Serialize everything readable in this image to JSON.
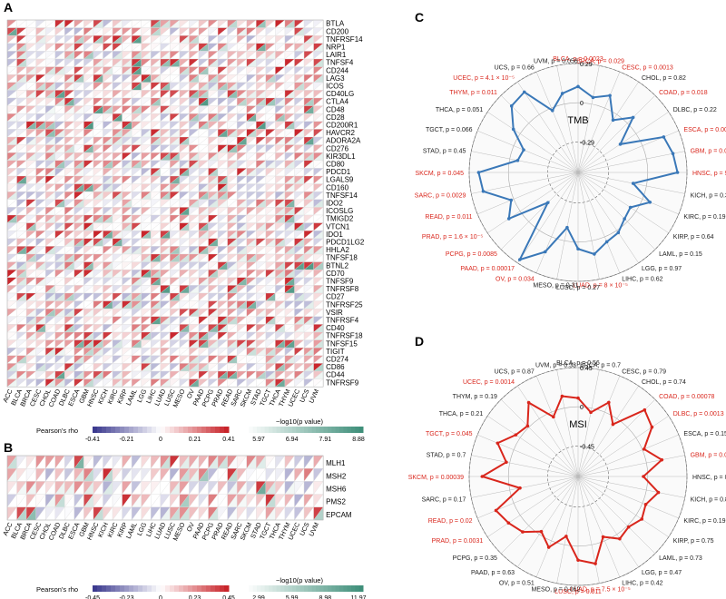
{
  "panels": {
    "A": {
      "label": "A",
      "title": "",
      "rows": [
        "BTLA",
        "CD200",
        "TNFRSF14",
        "NRP1",
        "LAIR1",
        "TNFSF4",
        "CD244",
        "LAG3",
        "ICOS",
        "CD40LG",
        "CTLA4",
        "CD48",
        "CD28",
        "CD200R1",
        "HAVCR2",
        "ADORA2A",
        "CD276",
        "KIR3DL1",
        "CD80",
        "PDCD1",
        "LGALS9",
        "CD160",
        "TNFSF14",
        "IDO2",
        "ICOSLG",
        "TMIGD2",
        "VTCN1",
        "IDO1",
        "PDCD1LG2",
        "HHLA2",
        "TNFSF18",
        "BTNL2",
        "CD70",
        "TNFSF9",
        "TNFRSF8",
        "CD27",
        "TNFRSF25",
        "VSIR",
        "TNFRSF4",
        "CD40",
        "TNFRSF18",
        "TNFSF15",
        "TIGIT",
        "CD274",
        "CD86",
        "CD44",
        "TNFRSF9"
      ],
      "columns": [
        "ACC",
        "BLCA",
        "BRCA",
        "CESC",
        "CHOL",
        "COAD",
        "DLBC",
        "ESCA",
        "GBM",
        "HNSC",
        "KICH",
        "KIRC",
        "KIRP",
        "LAML",
        "LGG",
        "LIHC",
        "LUAD",
        "LUSC",
        "MESO",
        "OV",
        "PAAD",
        "PCPG",
        "PRAD",
        "READ",
        "SARC",
        "SKCM",
        "STAD",
        "TGCT",
        "THCA",
        "THYM",
        "UCEC",
        "UCS",
        "UVM"
      ],
      "legend": {
        "rho_title": "Pearson's rho",
        "rho_ticks": [
          "-0.41",
          "-0.21",
          "0",
          "0.21",
          "0.41"
        ],
        "p_title": "−log10(p value)",
        "p_ticks": [
          "5.97",
          "6.94",
          "7.91",
          "8.88"
        ]
      }
    },
    "B": {
      "label": "B",
      "title": "",
      "rows": [
        "MLH1",
        "MSH2",
        "MSH6",
        "PMS2",
        "EPCAM"
      ],
      "columns": [
        "ACC",
        "BLCA",
        "BRCA",
        "CESC",
        "CHOL",
        "COAD",
        "DLBC",
        "ESCA",
        "GBM",
        "HNSC",
        "KICH",
        "KIRC",
        "KIRP",
        "LAML",
        "LGG",
        "LIHC",
        "LUAD",
        "LUSC",
        "MESO",
        "OV",
        "PAAD",
        "PCPG",
        "PRAD",
        "READ",
        "SARC",
        "SKCM",
        "STAD",
        "TGCT",
        "THCA",
        "THYM",
        "UCEC",
        "UCS",
        "UVM"
      ],
      "legend": {
        "rho_title": "Pearson's rho",
        "rho_ticks": [
          "-0.45",
          "-0.23",
          "0",
          "0.23",
          "0.45"
        ],
        "p_title": "−log10(p value)",
        "p_ticks": [
          "2.99",
          "5.99",
          "8.98",
          "11.97"
        ]
      }
    },
    "C": {
      "label": "C",
      "center_label": "TMB",
      "ring_labels": [
        "0.29",
        "0",
        "-0.29"
      ],
      "series_color": "#3a78b8",
      "points": [
        {
          "name": "BLCA",
          "p": "p = 0.0023",
          "r": 0.12,
          "sig": true
        },
        {
          "name": "BRCA",
          "p": "p = 0.029",
          "r": 0.05,
          "sig": true
        },
        {
          "name": "CESC",
          "p": "p = 0.0013",
          "r": 0.1,
          "sig": true
        },
        {
          "name": "CHOL",
          "p": "p = 0.82",
          "r": -0.05,
          "sig": false
        },
        {
          "name": "COAD",
          "p": "p = 0.018",
          "r": 0.06,
          "sig": true
        },
        {
          "name": "DLBC",
          "p": "p = 0.22",
          "r": -0.14,
          "sig": false
        },
        {
          "name": "ESCA",
          "p": "p = 0.0055",
          "r": 0.17,
          "sig": true
        },
        {
          "name": "GBM",
          "p": "p = 0.02",
          "r": 0.2,
          "sig": true
        },
        {
          "name": "HNSC",
          "p": "p = 9 × 10⁻⁵",
          "r": 0.22,
          "sig": true
        },
        {
          "name": "KICH",
          "p": "p = 0.34",
          "r": -0.1,
          "sig": false
        },
        {
          "name": "KIRC",
          "p": "p = 0.19",
          "r": 0.06,
          "sig": false
        },
        {
          "name": "KIRP",
          "p": "p = 0.64",
          "r": -0.05,
          "sig": false
        },
        {
          "name": "LAML",
          "p": "p = 0.15",
          "r": -0.03,
          "sig": false
        },
        {
          "name": "LGG",
          "p": "p = 0.97",
          "r": 0.02,
          "sig": false
        },
        {
          "name": "LIHC",
          "p": "p = 0.62",
          "r": 0.04,
          "sig": false
        },
        {
          "name": "LUAD",
          "p": "p = 8 × 10⁻⁵",
          "r": 0.1,
          "sig": true
        },
        {
          "name": "LUSC",
          "p": "p = 0.27",
          "r": 0.05,
          "sig": false
        },
        {
          "name": "MESO",
          "p": "p = 0.31",
          "r": -0.1,
          "sig": false
        },
        {
          "name": "OV",
          "p": "p = 0.034",
          "r": 0.12,
          "sig": true
        },
        {
          "name": "PAAD",
          "p": "p = 0.00017",
          "r": 0.26,
          "sig": true
        },
        {
          "name": "PCPG",
          "p": "p = 0.0085",
          "r": -0.2,
          "sig": true
        },
        {
          "name": "PRAD",
          "p": "p = 1.6 × 10⁻⁵",
          "r": 0.1,
          "sig": true
        },
        {
          "name": "READ",
          "p": "p = 0.011",
          "r": 0.02,
          "sig": true
        },
        {
          "name": "SARC",
          "p": "p = 0.0029",
          "r": 0.2,
          "sig": true
        },
        {
          "name": "SKCM",
          "p": "p = 0.045",
          "r": 0.22,
          "sig": true
        },
        {
          "name": "STAD",
          "p": "p = 0.45",
          "r": -0.06,
          "sig": false
        },
        {
          "name": "TGCT",
          "p": "p = 0.066",
          "r": -0.08,
          "sig": false
        },
        {
          "name": "THCA",
          "p": "p = 0.051",
          "r": 0.06,
          "sig": false
        },
        {
          "name": "THYM",
          "p": "p = 0.011",
          "r": 0.18,
          "sig": true
        },
        {
          "name": "UCEC",
          "p": "p = 4.1 × 10⁻⁵",
          "r": 0.2,
          "sig": true
        },
        {
          "name": "UCS",
          "p": "p = 0.66",
          "r": -0.02,
          "sig": false
        },
        {
          "name": "UVM",
          "p": "p = 0.056",
          "r": 0.08,
          "sig": false
        }
      ]
    },
    "D": {
      "label": "D",
      "center_label": "MSI",
      "ring_labels": [
        "0.45",
        "0",
        "-0.45"
      ],
      "series_color": "#d9261c",
      "points": [
        {
          "name": "BLCA",
          "p": "p = 0.56",
          "r": 0.1,
          "sig": false
        },
        {
          "name": "BRCA",
          "p": "p = 0.7",
          "r": -0.05,
          "sig": false
        },
        {
          "name": "CESC",
          "p": "p = 0.79",
          "r": 0.12,
          "sig": false
        },
        {
          "name": "CHOL",
          "p": "p = 0.74",
          "r": -0.08,
          "sig": false
        },
        {
          "name": "COAD",
          "p": "p = 0.00078",
          "r": 0.28,
          "sig": true
        },
        {
          "name": "DLBC",
          "p": "p = 0.0013",
          "r": 0.22,
          "sig": true
        },
        {
          "name": "ESCA",
          "p": "p = 0.15",
          "r": 0.02,
          "sig": false
        },
        {
          "name": "GBM",
          "p": "p = 0.016",
          "r": 0.18,
          "sig": true
        },
        {
          "name": "HNSC",
          "p": "p = 0.13",
          "r": -0.05,
          "sig": false
        },
        {
          "name": "KICH",
          "p": "p = 0.86",
          "r": 0.14,
          "sig": false
        },
        {
          "name": "KIRC",
          "p": "p = 0.19",
          "r": 0.04,
          "sig": false
        },
        {
          "name": "KIRP",
          "p": "p = 0.75",
          "r": 0.08,
          "sig": false
        },
        {
          "name": "LAML",
          "p": "p = 0.73",
          "r": 0.02,
          "sig": false
        },
        {
          "name": "LGG",
          "p": "p = 0.47",
          "r": 0.06,
          "sig": false
        },
        {
          "name": "LIHC",
          "p": "p = 0.42",
          "r": -0.05,
          "sig": false
        },
        {
          "name": "LUAD",
          "p": "p = 7.5 × 10⁻⁵",
          "r": 0.22,
          "sig": true
        },
        {
          "name": "LUSC",
          "p": "p = 0.011",
          "r": 0.16,
          "sig": true
        },
        {
          "name": "MESO",
          "p": "p = 0.062",
          "r": -0.1,
          "sig": false
        },
        {
          "name": "OV",
          "p": "p = 0.51",
          "r": 0.08,
          "sig": false
        },
        {
          "name": "PAAD",
          "p": "p = 0.63",
          "r": -0.04,
          "sig": false
        },
        {
          "name": "PCPG",
          "p": "p = 0.35",
          "r": 0.1,
          "sig": false
        },
        {
          "name": "PRAD",
          "p": "p = 0.0031",
          "r": 0.16,
          "sig": true
        },
        {
          "name": "READ",
          "p": "p = 0.02",
          "r": 0.22,
          "sig": true
        },
        {
          "name": "SARC",
          "p": "p = 0.17",
          "r": -0.12,
          "sig": false
        },
        {
          "name": "SKCM",
          "p": "p = 0.00039",
          "r": 0.3,
          "sig": true
        },
        {
          "name": "STAD",
          "p": "p = 0.7",
          "r": 0.04,
          "sig": false
        },
        {
          "name": "TGCT",
          "p": "p = 0.045",
          "r": 0.2,
          "sig": true
        },
        {
          "name": "THCA",
          "p": "p = 0.21",
          "r": 0.06,
          "sig": false
        },
        {
          "name": "THYM",
          "p": "p = 0.19",
          "r": 0.02,
          "sig": false
        },
        {
          "name": "UCEC",
          "p": "p = 0.0014",
          "r": 0.22,
          "sig": true
        },
        {
          "name": "UCS",
          "p": "p = 0.87",
          "r": -0.06,
          "sig": false
        },
        {
          "name": "UVM",
          "p": "p = 0.33",
          "r": 0.14,
          "sig": false
        }
      ]
    }
  },
  "colors": {
    "sig_label": "#d9261c",
    "nonsig_label": "#222222",
    "pos": "#c8242a",
    "neg": "#3c3a8f",
    "pval_high": "#3f8f7a"
  }
}
